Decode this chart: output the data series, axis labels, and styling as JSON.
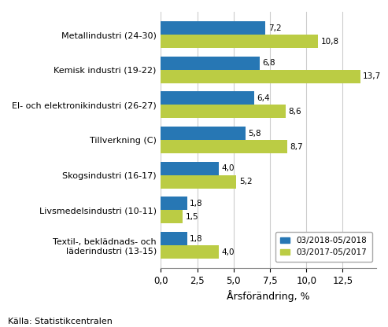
{
  "categories": [
    "Textil-, beklädnads- och\nläderindustri (13-15)",
    "Livsmedelsindustri (10-11)",
    "Skogsindustri (16-17)",
    "Tillverkning (C)",
    "El- och elektronikindustri (26-27)",
    "Kemisk industri (19-22)",
    "Metallindustri (24-30)"
  ],
  "values_2018": [
    1.8,
    1.8,
    4.0,
    5.8,
    6.4,
    6.8,
    7.2
  ],
  "values_2017": [
    4.0,
    1.5,
    5.2,
    8.7,
    8.6,
    13.7,
    10.8
  ],
  "color_2018": "#2777B4",
  "color_2017": "#BBCC44",
  "legend_2018": "03/2018-05/2018",
  "legend_2017": "03/2017-05/2017",
  "xlabel": "Årsförändring, %",
  "source": "Källa: Statistikcentralen",
  "xlim": [
    0,
    14.8
  ],
  "xticks": [
    0.0,
    2.5,
    5.0,
    7.5,
    10.0,
    12.5
  ],
  "xticklabels": [
    "0,0",
    "2,5",
    "5,0",
    "7,5",
    "10,0",
    "12,5"
  ],
  "bar_height": 0.38,
  "figsize": [
    4.93,
    4.16
  ],
  "dpi": 100
}
